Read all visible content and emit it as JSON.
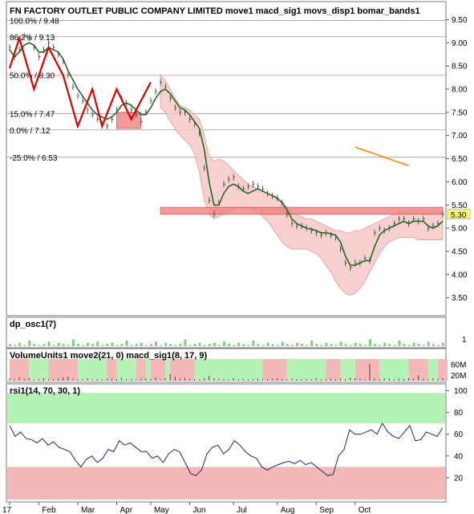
{
  "colors": {
    "frame": "#7a7a7a",
    "price_line": "#1f6b1f",
    "zigzag": "#dd0000",
    "band_fill": "#f7c8c8",
    "band_stroke": "#d98a8a",
    "orange": "#e68a00",
    "green_zone": "#b5f2b5",
    "red_zone": "#f5b8b8",
    "rsi_line": "#1a2a6c",
    "price_tag_bg": "#ffff66"
  },
  "chart_data": [
    {
      "type": "line",
      "title": "FN FACTORY OUTLET PUBLIC COMPANY LIMITED move1 macd_sig1 movs_disp1 bomar_bands1",
      "y_ticks": [
        "9.50",
        "9.00",
        "8.50",
        "8.00",
        "7.50",
        "7.00",
        "6.50",
        "6.00",
        "5.50",
        "5.00",
        "4.50",
        "4.00",
        "3.50"
      ],
      "ylim": [
        3.2,
        9.75
      ],
      "price_tag": "5.30",
      "fib_levels": [
        {
          "label": "100.0% / 9.48",
          "value": 9.48
        },
        {
          "label": "86.2% / 9.13",
          "value": 9.13
        },
        {
          "label": "50.0% / 8.30",
          "value": 8.3
        },
        {
          "label": "15.0% / 7.47",
          "value": 7.47
        },
        {
          "label": "0.0% / 7.12",
          "value": 7.12
        },
        {
          "label": "-25.0% / 6.53",
          "value": 6.53
        }
      ],
      "price": [
        8.9,
        8.7,
        8.85,
        9.15,
        9.1,
        8.9,
        8.7,
        8.85,
        9.0,
        8.9,
        8.75,
        8.6,
        8.3,
        8.05,
        7.85,
        7.75,
        7.55,
        7.45,
        7.35,
        7.25,
        7.2,
        7.35,
        7.55,
        7.8,
        7.7,
        7.55,
        7.45,
        7.3,
        7.5,
        7.75,
        7.95,
        8.15,
        8.05,
        7.8,
        7.6,
        7.5,
        7.5,
        7.35,
        7.25,
        7.05,
        6.3,
        5.6,
        5.3,
        5.55,
        5.95,
        6.05,
        6.1,
        5.9,
        5.85,
        5.9,
        5.95,
        5.9,
        5.85,
        5.75,
        5.7,
        5.65,
        5.55,
        5.3,
        5.1,
        5.05,
        5.05,
        5.0,
        4.95,
        4.9,
        4.85,
        4.9,
        4.85,
        4.8,
        4.55,
        4.25,
        4.15,
        4.25,
        4.25,
        4.35,
        4.3,
        4.9,
        5.0,
        4.95,
        5.0,
        5.1,
        5.2,
        5.2,
        5.1,
        5.2,
        5.15,
        5.2,
        5.0,
        5.05,
        5.1,
        5.3
      ],
      "ma": [
        8.85,
        8.7,
        8.8,
        8.95,
        9.0,
        8.95,
        8.8,
        8.8,
        8.9,
        8.85,
        8.8,
        8.65,
        8.4,
        8.2,
        8.0,
        7.85,
        7.7,
        7.55,
        7.45,
        7.4,
        7.35,
        7.4,
        7.5,
        7.65,
        7.7,
        7.65,
        7.55,
        7.45,
        7.45,
        7.6,
        7.8,
        7.95,
        8.0,
        7.9,
        7.75,
        7.6,
        7.55,
        7.45,
        7.3,
        7.15,
        6.7,
        6.0,
        5.5,
        5.5,
        5.75,
        5.9,
        5.95,
        5.9,
        5.8,
        5.75,
        5.8,
        5.85,
        5.8,
        5.75,
        5.7,
        5.65,
        5.55,
        5.4,
        5.2,
        5.1,
        5.05,
        5.0,
        4.98,
        4.95,
        4.9,
        4.9,
        4.88,
        4.85,
        4.7,
        4.4,
        4.2,
        4.2,
        4.25,
        4.3,
        4.3,
        4.6,
        4.85,
        4.95,
        5.0,
        5.05,
        5.1,
        5.15,
        5.1,
        5.15,
        5.15,
        5.15,
        5.05,
        5.0,
        5.05,
        5.15
      ],
      "band_upper": [
        null,
        null,
        null,
        null,
        null,
        null,
        null,
        null,
        null,
        null,
        null,
        null,
        null,
        null,
        null,
        null,
        null,
        null,
        null,
        null,
        null,
        null,
        null,
        null,
        null,
        null,
        null,
        null,
        null,
        null,
        null,
        8.3,
        8.2,
        8.0,
        7.8,
        7.65,
        7.6,
        7.55,
        7.45,
        7.35,
        7.0,
        6.55,
        6.45,
        6.5,
        6.45,
        6.35,
        6.25,
        6.15,
        6.05,
        5.95,
        5.9,
        5.85,
        5.8,
        5.75,
        5.7,
        5.65,
        5.55,
        5.45,
        5.35,
        5.3,
        5.25,
        5.2,
        5.2,
        5.15,
        5.1,
        5.05,
        5.0,
        4.95,
        4.95,
        4.9,
        4.9,
        4.95,
        4.95,
        5.0,
        5.05,
        5.1,
        5.15,
        5.2,
        5.25,
        5.3,
        5.35,
        5.35,
        5.35,
        5.35,
        5.35,
        5.35,
        5.35,
        5.35,
        5.35,
        5.35
      ],
      "band_lower": [
        null,
        null,
        null,
        null,
        null,
        null,
        null,
        null,
        null,
        null,
        null,
        null,
        null,
        null,
        null,
        null,
        null,
        null,
        null,
        null,
        null,
        null,
        null,
        null,
        null,
        null,
        null,
        null,
        null,
        null,
        null,
        7.6,
        7.5,
        7.3,
        7.15,
        7.0,
        6.9,
        6.8,
        6.6,
        6.2,
        5.6,
        5.3,
        5.2,
        5.25,
        5.3,
        5.35,
        5.4,
        5.45,
        5.45,
        5.45,
        5.4,
        5.35,
        5.25,
        5.15,
        5.0,
        4.85,
        4.7,
        4.6,
        4.55,
        4.55,
        4.55,
        4.55,
        4.5,
        4.45,
        4.35,
        4.2,
        4.05,
        3.85,
        3.7,
        3.6,
        3.55,
        3.6,
        3.7,
        3.85,
        4.05,
        4.25,
        4.45,
        4.6,
        4.7,
        4.75,
        4.8,
        4.8,
        4.8,
        4.8,
        4.75,
        4.75,
        4.75,
        4.75,
        4.75,
        4.75
      ],
      "zigzag_points": [
        [
          0,
          8.45
        ],
        [
          2,
          9.1
        ],
        [
          5,
          8.0
        ],
        [
          8,
          8.9
        ],
        [
          11,
          8.3
        ],
        [
          14,
          7.2
        ],
        [
          17,
          8.0
        ],
        [
          19,
          7.2
        ],
        [
          22,
          8.0
        ],
        [
          25,
          7.35
        ],
        [
          29,
          8.15
        ]
      ],
      "orange_segment": [
        [
          71,
          6.75
        ],
        [
          82,
          6.35
        ]
      ],
      "red_rect": {
        "x0": 22,
        "x1": 27,
        "y0": 7.15,
        "y1": 7.5
      },
      "support_band": {
        "x0": 31,
        "x1": 89,
        "y0": 5.3,
        "y1": 5.45
      }
    },
    {
      "type": "bar",
      "title": "dp_osc1(7)",
      "y_ticks": [
        "1"
      ],
      "values": [
        0.2,
        0.1,
        0.3,
        0.1,
        0.5,
        0.2,
        0.1,
        0.2,
        0.4,
        0.1,
        0.3,
        0.2,
        0.1,
        0.6,
        0.2,
        0.1,
        0.3,
        0.2,
        0.4,
        0.1,
        0.2,
        0.3,
        0.1,
        0.2,
        0.5,
        0.1,
        0.2,
        0.3,
        0.1,
        0.2,
        0.4,
        0.1,
        0.3,
        0.2,
        0.1,
        0.2,
        0.6,
        0.1,
        0.2,
        0.3,
        0.1,
        0.2,
        0.3,
        0.1,
        0.4,
        0.2,
        0.1,
        0.3,
        0.2,
        0.1,
        0.5,
        0.2,
        0.1,
        0.3,
        0.2,
        0.1,
        0.4,
        0.2,
        0.1,
        0.3,
        0.2,
        0.1,
        0.5,
        0.2,
        0.1,
        0.3,
        0.2,
        0.1,
        0.4,
        0.2,
        0.1,
        0.3,
        0.2,
        0.1,
        0.6,
        0.2,
        0.1,
        0.3,
        0.2,
        0.1,
        0.5,
        0.2,
        0.1,
        0.3,
        0.2,
        0.1,
        0.4,
        0.2,
        0.1,
        0.3
      ]
    },
    {
      "type": "bar",
      "title": "VolumeUnits1 move2(21, 0) macd_sig1(8, 17, 9)",
      "y_ticks": [
        "60M",
        "20M"
      ],
      "ylim": [
        0,
        80
      ],
      "zones": [
        {
          "x0": 0,
          "x1": 4,
          "state": "red"
        },
        {
          "x0": 4,
          "x1": 8,
          "state": "green"
        },
        {
          "x0": 8,
          "x1": 14,
          "state": "red"
        },
        {
          "x0": 14,
          "x1": 20,
          "state": "green"
        },
        {
          "x0": 20,
          "x1": 22,
          "state": "red"
        },
        {
          "x0": 22,
          "x1": 26,
          "state": "green"
        },
        {
          "x0": 26,
          "x1": 28,
          "state": "red"
        },
        {
          "x0": 28,
          "x1": 29,
          "state": "green"
        },
        {
          "x0": 29,
          "x1": 32,
          "state": "red"
        },
        {
          "x0": 32,
          "x1": 33,
          "state": "green"
        },
        {
          "x0": 33,
          "x1": 38,
          "state": "red"
        },
        {
          "x0": 38,
          "x1": 52,
          "state": "green"
        },
        {
          "x0": 52,
          "x1": 57,
          "state": "red"
        },
        {
          "x0": 57,
          "x1": 65,
          "state": "green"
        },
        {
          "x0": 65,
          "x1": 68,
          "state": "red"
        },
        {
          "x0": 68,
          "x1": 71,
          "state": "green"
        },
        {
          "x0": 71,
          "x1": 76,
          "state": "red"
        },
        {
          "x0": 76,
          "x1": 82,
          "state": "green"
        },
        {
          "x0": 82,
          "x1": 86,
          "state": "red"
        },
        {
          "x0": 86,
          "x1": 88,
          "state": "green"
        },
        {
          "x0": 88,
          "x1": 90,
          "state": "red"
        }
      ],
      "volumes": [
        8,
        5,
        12,
        6,
        10,
        4,
        7,
        9,
        5,
        6,
        8,
        12,
        15,
        7,
        5,
        6,
        9,
        4,
        6,
        5,
        8,
        7,
        6,
        10,
        5,
        6,
        4,
        7,
        8,
        6,
        12,
        5,
        9,
        25,
        14,
        8,
        10,
        7,
        6,
        5,
        9,
        18,
        8,
        7,
        6,
        5,
        9,
        6,
        7,
        5,
        6,
        8,
        5,
        6,
        7,
        9,
        6,
        5,
        8,
        6,
        5,
        7,
        6,
        9,
        5,
        6,
        7,
        5,
        8,
        6,
        12,
        9,
        7,
        5,
        62,
        8,
        6,
        9,
        7,
        5,
        8,
        6,
        9,
        7,
        20,
        6,
        5,
        8,
        7,
        9
      ]
    },
    {
      "type": "line",
      "title": "rsi1(14, 70, 30, 1)",
      "y_ticks": [
        "100",
        "80",
        "60",
        "40",
        "20"
      ],
      "ylim": [
        0,
        104
      ],
      "x_labels": [
        "17",
        "Feb",
        "Mar",
        "Apr",
        "May",
        "Jun",
        "Jul",
        "Aug",
        "Sep",
        "Oct"
      ],
      "values": [
        68,
        58,
        62,
        56,
        55,
        52,
        56,
        50,
        53,
        48,
        46,
        44,
        36,
        30,
        37,
        40,
        34,
        38,
        46,
        44,
        54,
        50,
        52,
        48,
        44,
        44,
        38,
        40,
        34,
        42,
        46,
        44,
        34,
        24,
        22,
        27,
        42,
        48,
        50,
        42,
        46,
        54,
        50,
        44,
        40,
        38,
        30,
        27,
        30,
        32,
        34,
        35,
        33,
        36,
        32,
        34,
        30,
        26,
        22,
        23,
        40,
        46,
        64,
        60,
        60,
        62,
        64,
        60,
        70,
        62,
        58,
        56,
        62,
        68,
        54,
        55,
        62,
        60,
        58,
        66
      ]
    }
  ]
}
